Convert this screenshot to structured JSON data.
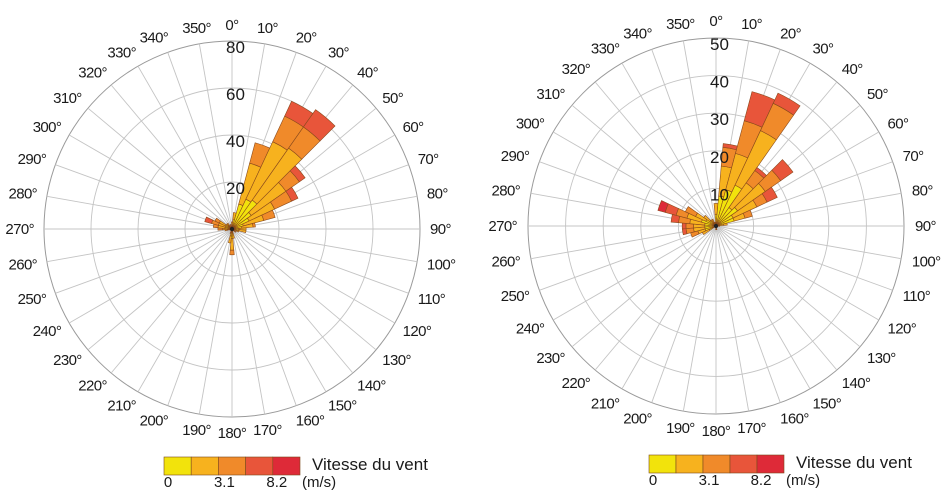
{
  "chart_data": [
    {
      "type": "polar-stacked-bar",
      "directions_deg": [
        0,
        10,
        20,
        30,
        40,
        50,
        60,
        70,
        80,
        90,
        100,
        110,
        120,
        130,
        140,
        150,
        160,
        170,
        180,
        190,
        200,
        210,
        220,
        230,
        240,
        250,
        260,
        270,
        280,
        290,
        300,
        310,
        320,
        330,
        340,
        350
      ],
      "direction_labels": [
        "0°",
        "10°",
        "20°",
        "30°",
        "40°",
        "50°",
        "60°",
        "70°",
        "80°",
        "90°",
        "100°",
        "110°",
        "120°",
        "130°",
        "140°",
        "150°",
        "160°",
        "170°",
        "180°",
        "190°",
        "200°",
        "210°",
        "220°",
        "230°",
        "240°",
        "250°",
        "260°",
        "270°",
        "280°",
        "290°",
        "300°",
        "310°",
        "320°",
        "330°",
        "340°",
        "350°"
      ],
      "rlim": [
        0,
        80
      ],
      "ring_values": [
        20,
        40,
        60,
        80
      ],
      "ring_labels": [
        "20",
        "40",
        "60",
        "80"
      ],
      "speed_bins": [
        "bin1",
        "bin2",
        "bin3",
        "bin4",
        "bin5"
      ],
      "bin_colors": [
        "#f2e30c",
        "#f7b21e",
        "#f08a2a",
        "#e8553a",
        "#de2a38"
      ],
      "wedges": [
        {
          "dir": 0,
          "stack": [
            2,
            1
          ]
        },
        {
          "dir": 10,
          "stack": [
            4,
            3
          ]
        },
        {
          "dir": 20,
          "stack": [
            11,
            18,
            9
          ]
        },
        {
          "dir": 30,
          "stack": [
            14,
            27,
            12,
            7
          ]
        },
        {
          "dir": 40,
          "stack": [
            15,
            27,
            11,
            9
          ]
        },
        {
          "dir": 50,
          "stack": [
            10,
            18,
            7,
            3
          ]
        },
        {
          "dir": 60,
          "stack": [
            8,
            12,
            8,
            3
          ]
        },
        {
          "dir": 70,
          "stack": [
            5,
            9,
            5
          ]
        },
        {
          "dir": 80,
          "stack": [
            4,
            5,
            1
          ]
        },
        {
          "dir": 90,
          "stack": [
            3,
            3
          ]
        },
        {
          "dir": 100,
          "stack": [
            3,
            3
          ]
        },
        {
          "dir": 110,
          "stack": [
            2,
            1
          ]
        },
        {
          "dir": 130,
          "stack": [
            1,
            1
          ]
        },
        {
          "dir": 150,
          "stack": [
            1
          ]
        },
        {
          "dir": 170,
          "stack": [
            2,
            2
          ]
        },
        {
          "dir": 180,
          "stack": [
            4,
            5,
            2
          ]
        },
        {
          "dir": 190,
          "stack": [
            3,
            3
          ]
        },
        {
          "dir": 200,
          "stack": [
            1,
            1
          ]
        },
        {
          "dir": 240,
          "stack": [
            1
          ]
        },
        {
          "dir": 260,
          "stack": [
            2,
            1
          ]
        },
        {
          "dir": 270,
          "stack": [
            2,
            2,
            2
          ]
        },
        {
          "dir": 280,
          "stack": [
            3,
            3,
            2
          ]
        },
        {
          "dir": 290,
          "stack": [
            3,
            3,
            3,
            3
          ]
        },
        {
          "dir": 300,
          "stack": [
            3,
            3,
            2
          ]
        },
        {
          "dir": 310,
          "stack": [
            2,
            1
          ]
        },
        {
          "dir": 320,
          "stack": [
            2,
            1
          ]
        },
        {
          "dir": 330,
          "stack": [
            1
          ]
        },
        {
          "dir": 340,
          "stack": [
            1,
            1
          ]
        },
        {
          "dir": 350,
          "stack": [
            1
          ]
        }
      ],
      "legend": {
        "title": "Vitesse du vent",
        "tick_labels": [
          "0",
          "3.1",
          "8.2"
        ],
        "unit": "(m/s)"
      }
    },
    {
      "type": "polar-stacked-bar",
      "directions_deg": [
        0,
        10,
        20,
        30,
        40,
        50,
        60,
        70,
        80,
        90,
        100,
        110,
        120,
        130,
        140,
        150,
        160,
        170,
        180,
        190,
        200,
        210,
        220,
        230,
        240,
        250,
        260,
        270,
        280,
        290,
        300,
        310,
        320,
        330,
        340,
        350
      ],
      "direction_labels": [
        "0°",
        "10°",
        "20°",
        "30°",
        "40°",
        "50°",
        "60°",
        "70°",
        "80°",
        "90°",
        "100°",
        "110°",
        "120°",
        "130°",
        "140°",
        "150°",
        "160°",
        "170°",
        "180°",
        "190°",
        "200°",
        "210°",
        "220°",
        "230°",
        "240°",
        "250°",
        "260°",
        "270°",
        "280°",
        "290°",
        "300°",
        "310°",
        "320°",
        "330°",
        "340°",
        "350°"
      ],
      "rlim": [
        0,
        50
      ],
      "ring_values": [
        10,
        20,
        30,
        40,
        50
      ],
      "ring_labels": [
        "10",
        "20",
        "30",
        "40",
        "50"
      ],
      "speed_bins": [
        "bin1",
        "bin2",
        "bin3",
        "bin4",
        "bin5"
      ],
      "bin_colors": [
        "#f2e30c",
        "#f7b21e",
        "#f08a2a",
        "#e8553a",
        "#de2a38"
      ],
      "wedges": [
        {
          "dir": 0,
          "stack": [
            3,
            3
          ]
        },
        {
          "dir": 10,
          "stack": [
            8,
            8,
            5,
            1
          ]
        },
        {
          "dir": 20,
          "stack": [
            10,
            10,
            9,
            8
          ]
        },
        {
          "dir": 30,
          "stack": [
            12,
            16,
            8,
            3
          ]
        },
        {
          "dir": 40,
          "stack": [
            6,
            8,
            4,
            1
          ]
        },
        {
          "dir": 50,
          "stack": [
            7,
            9,
            5,
            4
          ]
        },
        {
          "dir": 60,
          "stack": [
            5,
            7,
            3,
            3
          ]
        },
        {
          "dir": 70,
          "stack": [
            5,
            3,
            2
          ]
        },
        {
          "dir": 80,
          "stack": [
            2,
            1
          ]
        },
        {
          "dir": 90,
          "stack": [
            1
          ]
        },
        {
          "dir": 170,
          "stack": [
            1
          ]
        },
        {
          "dir": 180,
          "stack": [
            1
          ]
        },
        {
          "dir": 240,
          "stack": [
            2,
            2
          ]
        },
        {
          "dir": 250,
          "stack": [
            3,
            2,
            2
          ]
        },
        {
          "dir": 260,
          "stack": [
            3,
            3,
            2,
            1
          ]
        },
        {
          "dir": 270,
          "stack": [
            3,
            3,
            2,
            1
          ]
        },
        {
          "dir": 280,
          "stack": [
            3,
            4,
            3,
            2
          ]
        },
        {
          "dir": 290,
          "stack": [
            4,
            4,
            3,
            3,
            2
          ]
        },
        {
          "dir": 300,
          "stack": [
            3,
            3,
            3
          ]
        },
        {
          "dir": 310,
          "stack": [
            2,
            2
          ]
        },
        {
          "dir": 320,
          "stack": [
            1,
            1
          ]
        },
        {
          "dir": 330,
          "stack": [
            1,
            1
          ]
        },
        {
          "dir": 340,
          "stack": [
            1
          ]
        },
        {
          "dir": 350,
          "stack": [
            1
          ]
        }
      ],
      "legend": {
        "title": "Vitesse du vent",
        "tick_labels": [
          "0",
          "3.1",
          "8.2"
        ],
        "unit": "(m/s)"
      }
    }
  ]
}
